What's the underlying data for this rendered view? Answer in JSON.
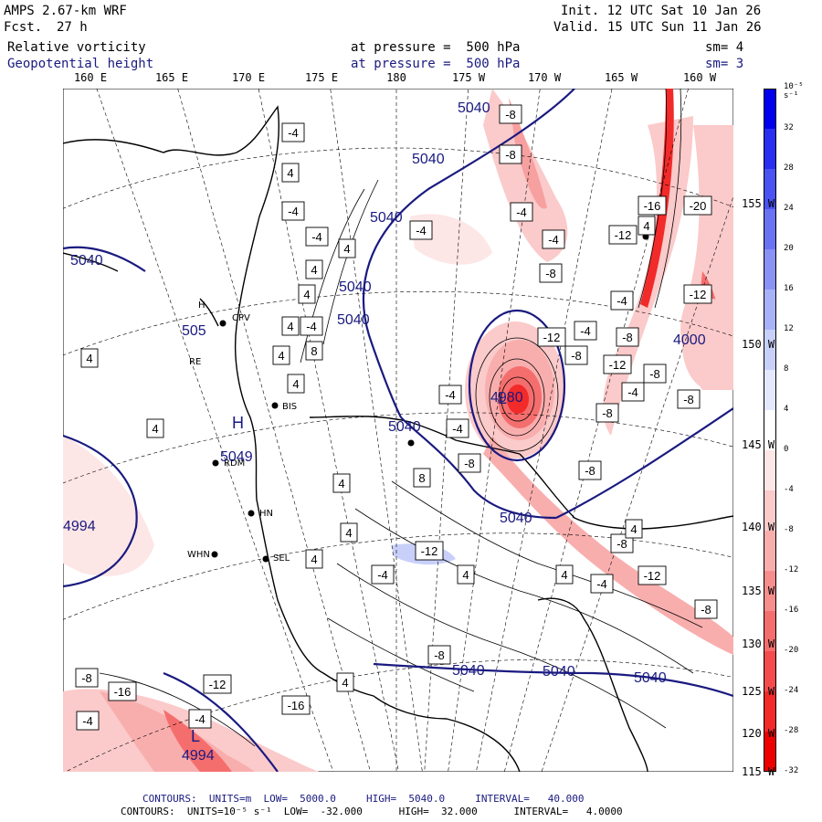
{
  "header": {
    "model": "AMPS 2.67-km WRF",
    "fcst_label": "Fcst.",
    "fcst_value": "27 h",
    "init": "Init. 12 UTC Sat 10 Jan 26",
    "valid": "Valid. 15 UTC Sun 11 Jan 26",
    "field1_name": "Relative vorticity",
    "field1_level": "at pressure =  500 hPa",
    "field1_sm": "sm= 4",
    "field2_name": "Geopotential height",
    "field2_level": "at pressure =  500 hPa",
    "field2_sm": "sm= 3"
  },
  "longitude_labels": [
    "160 E",
    "165 E",
    "170 E",
    "175 E",
    "180",
    "175 W",
    "170 W",
    "165 W",
    "160 W"
  ],
  "latitude_labels": [
    "155 W",
    "150 W",
    "145 W",
    "140 W",
    "135 W",
    "130 W",
    "125 W",
    "120 W",
    "115 W"
  ],
  "colorbar": {
    "unit": "10⁻⁵ s⁻¹",
    "labels": [
      "32",
      "28",
      "24",
      "20",
      "16",
      "12",
      "8",
      "4",
      "0",
      "-4",
      "-8",
      "-12",
      "-16",
      "-20",
      "-24",
      "-28",
      "-32"
    ],
    "colors": [
      "#0000ee",
      "#2a2ef0",
      "#4a52f2",
      "#6a72f4",
      "#8a92f6",
      "#a8b2f8",
      "#c8d0fa",
      "#e4e8fc",
      "#ffffff",
      "#fde6e6",
      "#fbcaca",
      "#f9aeae",
      "#f78e8e",
      "#f56e6e",
      "#f44c4c",
      "#f22a2a",
      "#ee0000"
    ]
  },
  "stations": [
    "CPV",
    "BIS",
    "RDM",
    "HN",
    "WHN",
    "SEL",
    "H",
    "RE"
  ],
  "highs_lows": [
    "H",
    "L",
    "L"
  ],
  "height_labels": [
    "5040",
    "5040",
    "5040",
    "5040",
    "5040",
    "5040",
    "5040",
    "5040",
    "5040",
    "5040",
    "4980",
    "5040",
    "4994",
    "4994",
    "5049",
    "505",
    "4000"
  ],
  "vorticity_labels": [
    "-8",
    "-8",
    "-4",
    "4",
    "-4",
    "-4",
    "4",
    "4",
    "-4",
    "8",
    "4",
    "4",
    "4",
    "4",
    "-4",
    "-4",
    "-4",
    "-8",
    "-12",
    "-16",
    "-20",
    "4",
    "-4",
    "-12",
    "-12",
    "-8",
    "-12",
    "-8",
    "-8",
    "-4",
    "-4",
    "-8",
    "-8",
    "-4",
    "-4",
    "-8",
    "-8",
    "-12",
    "8",
    "4",
    "4",
    "4",
    "-8",
    "-4",
    "-12",
    "-8",
    "-16",
    "-4",
    "-4",
    "-12",
    "-16",
    "-8",
    "-4",
    "4",
    "4",
    "4",
    "4",
    "4",
    "-8",
    "4"
  ],
  "footer": {
    "line1": "CONTOURS:  UNITS=m  LOW=  5000.0     HIGH=  5040.0     INTERVAL=   40.000",
    "line2": "CONTOURS:  UNITS=10⁻⁵ s⁻¹  LOW=  -32.000      HIGH=  32.000      INTERVAL=   4.0000"
  }
}
